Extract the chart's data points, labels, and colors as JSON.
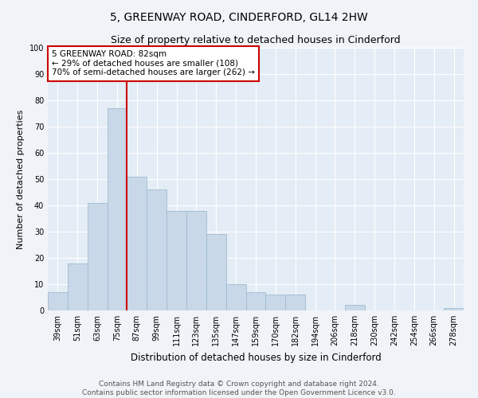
{
  "title": "5, GREENWAY ROAD, CINDERFORD, GL14 2HW",
  "subtitle": "Size of property relative to detached houses in Cinderford",
  "xlabel": "Distribution of detached houses by size in Cinderford",
  "ylabel": "Number of detached properties",
  "bar_color": "#c8d8e8",
  "bar_edge_color": "#a0bcd0",
  "bg_color": "#e4edf5",
  "grid_color": "#ffffff",
  "categories": [
    "39sqm",
    "51sqm",
    "63sqm",
    "75sqm",
    "87sqm",
    "99sqm",
    "111sqm",
    "123sqm",
    "135sqm",
    "147sqm",
    "159sqm",
    "170sqm",
    "182sqm",
    "194sqm",
    "206sqm",
    "218sqm",
    "230sqm",
    "242sqm",
    "254sqm",
    "266sqm",
    "278sqm"
  ],
  "values": [
    7,
    18,
    41,
    77,
    51,
    46,
    38,
    38,
    29,
    10,
    7,
    6,
    6,
    0,
    0,
    2,
    0,
    0,
    0,
    0,
    1
  ],
  "ylim": [
    0,
    100
  ],
  "yticks": [
    0,
    10,
    20,
    30,
    40,
    50,
    60,
    70,
    80,
    90,
    100
  ],
  "property_line_x": 3.5,
  "annotation_text": "5 GREENWAY ROAD: 82sqm\n← 29% of detached houses are smaller (108)\n70% of semi-detached houses are larger (262) →",
  "annotation_box_color": "#ffffff",
  "annotation_border_color": "#cc0000",
  "vline_color": "#cc0000",
  "footer_line1": "Contains HM Land Registry data © Crown copyright and database right 2024.",
  "footer_line2": "Contains public sector information licensed under the Open Government Licence v3.0.",
  "title_fontsize": 10,
  "subtitle_fontsize": 9,
  "xlabel_fontsize": 8.5,
  "ylabel_fontsize": 8,
  "tick_fontsize": 7,
  "annotation_fontsize": 7.5,
  "footer_fontsize": 6.5
}
